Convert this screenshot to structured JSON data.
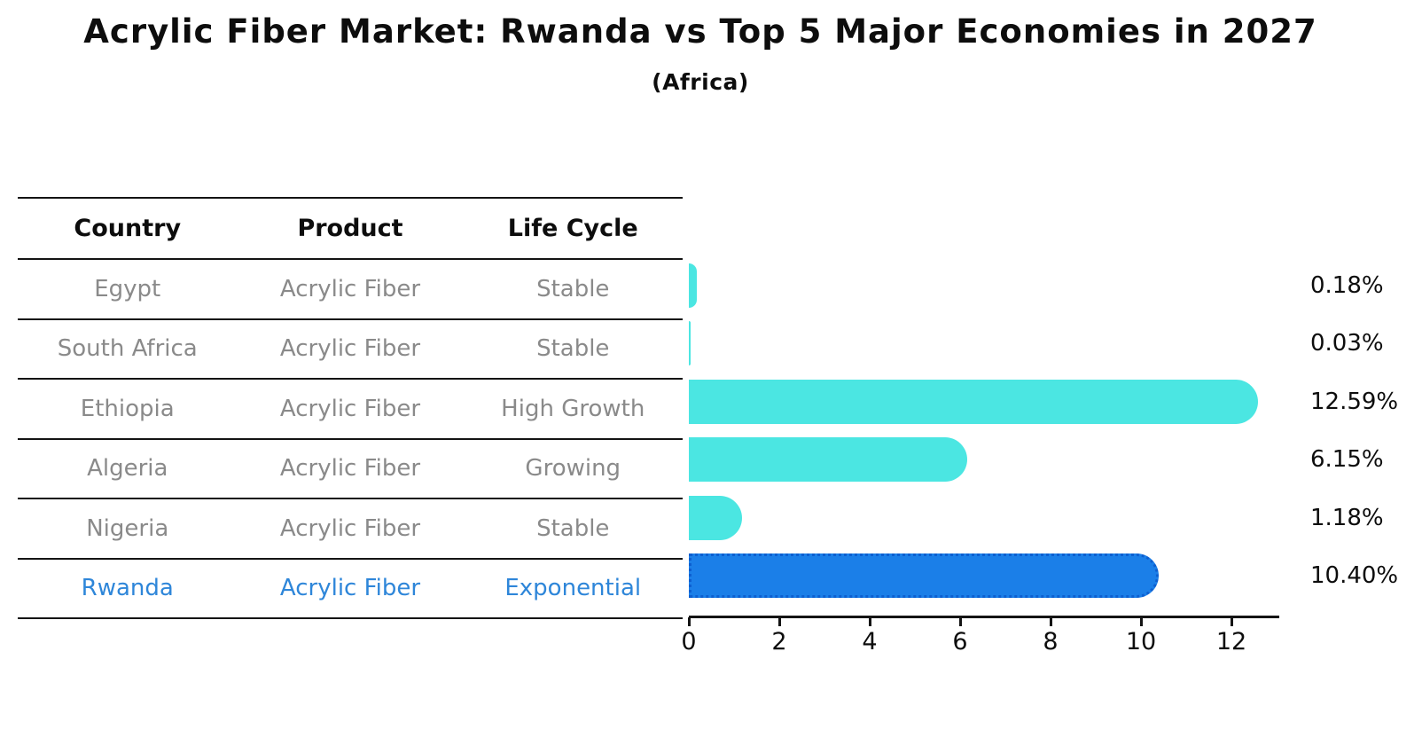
{
  "title": "Acrylic Fiber Market: Rwanda vs Top 5 Major Economies in 2027",
  "subtitle": "(Africa)",
  "table": {
    "headers": [
      "Country",
      "Product",
      "Life Cycle"
    ],
    "rows": [
      {
        "country": "Egypt",
        "product": "Acrylic Fiber",
        "life_cycle": "Stable"
      },
      {
        "country": "South Africa",
        "product": "Acrylic Fiber",
        "life_cycle": "Stable"
      },
      {
        "country": "Ethiopia",
        "product": "Acrylic Fiber",
        "life_cycle": "High Growth"
      },
      {
        "country": "Algeria",
        "product": "Acrylic Fiber",
        "life_cycle": "Growing"
      },
      {
        "country": "Nigeria",
        "product": "Acrylic Fiber",
        "life_cycle": "Stable"
      },
      {
        "country": "Rwanda",
        "product": "Acrylic Fiber",
        "life_cycle": "Exponential"
      }
    ],
    "highlight_row": 5
  },
  "chart_data": {
    "type": "bar",
    "orientation": "horizontal",
    "categories": [
      "Egypt",
      "South Africa",
      "Ethiopia",
      "Algeria",
      "Nigeria",
      "Rwanda"
    ],
    "values": [
      0.18,
      0.03,
      12.59,
      6.15,
      1.18,
      10.4
    ],
    "value_labels": [
      "0.18%",
      "0.03%",
      "12.59%",
      "6.15%",
      "1.18%",
      "10.40%"
    ],
    "xticks": [
      "0",
      "2",
      "4",
      "6",
      "8",
      "10",
      "12"
    ],
    "xtick_values": [
      0,
      2,
      4,
      6,
      8,
      10,
      12
    ],
    "xlim": [
      0,
      13
    ],
    "grid": false,
    "legend": null,
    "highlight_index": 5,
    "bar_color": "#4be6e2",
    "highlight_bar_color": "#1b7fe8",
    "highlight_text_color": "#2e86d9"
  },
  "colors": {
    "background": "#ffffff",
    "text": "#0d0d0d",
    "table_text": "#8a8a8a",
    "table_line": "#141414",
    "highlight_border": "#0d5fd0"
  }
}
